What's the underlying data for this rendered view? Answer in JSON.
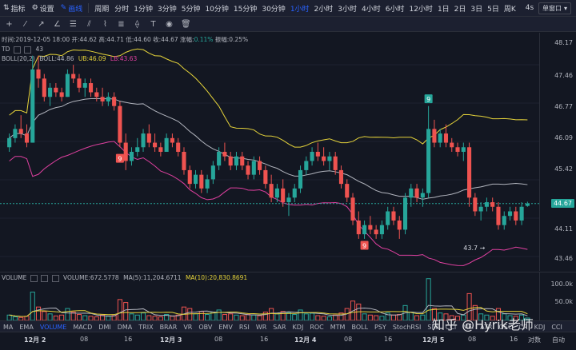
{
  "topbar": {
    "indicator_label": "指标",
    "settings_label": "设置",
    "draw_label": "画线",
    "period_label": "周期",
    "timeframes": [
      "分时",
      "1分钟",
      "3分钟",
      "5分钟",
      "10分钟",
      "15分钟",
      "30分钟",
      "1小时",
      "2小时",
      "3小时",
      "4小时",
      "6小时",
      "12小时",
      "1日",
      "2日",
      "3日",
      "5日",
      "周K"
    ],
    "active_timeframe": "1小时",
    "right_meta": "4s",
    "window_select": "单窗口"
  },
  "legend": {
    "ohlc": "时间:2019-12-05 18:00  开:44.62  高:44.71  低:44.60  收:44.67  涨幅:",
    "change_pct": "0.11%",
    "amplitude": "  振幅:0.25%",
    "td_label": "TD",
    "td_value": "43",
    "boll_label": "BOLL(20,2)",
    "boll_mid": "BOLL:44.86",
    "boll_ub": "UB:46.09",
    "boll_lb": "LB:43.63",
    "volume_label": "VOLUME",
    "volume_value": "VOLUME:672.5778",
    "ma_s": "MA(5):11,204.6711",
    "ma_10": "MA(10):20,830.8691"
  },
  "price_axis": {
    "ticks": [
      "48.17",
      "47.46",
      "46.77",
      "46.09",
      "45.42",
      "44.11",
      "43.46"
    ],
    "current": "44.67"
  },
  "volume_axis": {
    "ticks": [
      "100.0k",
      "50.0k"
    ]
  },
  "indicators": [
    "MA",
    "EMA",
    "VOLUME",
    "MACD",
    "DMI",
    "DMA",
    "TRIX",
    "BRAR",
    "VR",
    "OBV",
    "EMV",
    "RSI",
    "WR",
    "SAR",
    "KDJ",
    "ROC",
    "MTM",
    "BOLL",
    "PSY",
    "StochRSI",
    "SMI",
    "CCI",
    "MFI",
    "ATR",
    "OSC",
    "CR",
    "KDJ",
    "CCI"
  ],
  "active_indicator": "VOLUME",
  "xaxis": {
    "labels": [
      {
        "t": "12月 2",
        "b": true
      },
      {
        "t": "08",
        "b": false
      },
      {
        "t": "16",
        "b": false
      },
      {
        "t": "12月 3",
        "b": true
      },
      {
        "t": "08",
        "b": false
      },
      {
        "t": "16",
        "b": false
      },
      {
        "t": "12月 4",
        "b": true
      },
      {
        "t": "08",
        "b": false
      },
      {
        "t": "16",
        "b": false
      },
      {
        "t": "12月 5",
        "b": true
      },
      {
        "t": "08",
        "b": false
      },
      {
        "t": "16",
        "b": false
      }
    ],
    "log_label": "对数",
    "auto_label": "自动"
  },
  "annotations": {
    "td_top": "9",
    "td_bottom_1": "9",
    "td_bottom_2": "9",
    "low_note": "43.7 →"
  },
  "watermark": "知乎 @Hyrik老师",
  "colors": {
    "up": "#26a69a",
    "down": "#ef5350",
    "ub": "#e6d43a",
    "mid": "#b2b5be",
    "lb": "#e040a0",
    "accent": "#2962ff"
  },
  "chart_data": {
    "type": "candlestick",
    "ylim": [
      43.2,
      48.4
    ],
    "candles": [
      [
        45.9,
        46.2,
        45.8,
        46.1
      ],
      [
        46.1,
        46.4,
        46.0,
        46.3
      ],
      [
        46.3,
        46.6,
        46.1,
        46.2
      ],
      [
        46.2,
        46.4,
        45.9,
        46.0
      ],
      [
        46.0,
        47.9,
        46.0,
        47.6
      ],
      [
        47.6,
        47.9,
        47.2,
        47.4
      ],
      [
        47.4,
        47.5,
        46.9,
        47.0
      ],
      [
        47.0,
        47.3,
        46.8,
        47.2
      ],
      [
        47.2,
        47.3,
        47.0,
        47.1
      ],
      [
        47.1,
        47.2,
        46.9,
        47.0
      ],
      [
        47.0,
        47.6,
        47.0,
        47.5
      ],
      [
        47.5,
        47.7,
        47.3,
        47.4
      ],
      [
        47.4,
        47.5,
        47.1,
        47.2
      ],
      [
        47.2,
        47.4,
        47.0,
        47.3
      ],
      [
        47.3,
        47.4,
        47.0,
        47.1
      ],
      [
        47.1,
        47.2,
        46.9,
        47.0
      ],
      [
        47.0,
        47.2,
        46.8,
        46.9
      ],
      [
        46.9,
        47.1,
        46.8,
        47.0
      ],
      [
        47.0,
        47.1,
        46.7,
        46.8
      ],
      [
        46.8,
        46.9,
        45.9,
        46.0
      ],
      [
        46.0,
        46.2,
        45.4,
        45.6
      ],
      [
        45.6,
        45.9,
        45.5,
        45.8
      ],
      [
        45.8,
        46.1,
        45.7,
        45.9
      ],
      [
        45.9,
        46.3,
        45.8,
        46.2
      ],
      [
        46.2,
        46.4,
        45.9,
        46.0
      ],
      [
        46.0,
        46.2,
        45.8,
        45.9
      ],
      [
        45.9,
        46.0,
        45.7,
        45.8
      ],
      [
        45.8,
        46.2,
        45.8,
        46.1
      ],
      [
        46.1,
        46.2,
        45.9,
        46.0
      ],
      [
        46.0,
        46.1,
        45.7,
        45.8
      ],
      [
        45.8,
        45.9,
        45.3,
        45.4
      ],
      [
        45.4,
        45.5,
        45.0,
        45.1
      ],
      [
        45.1,
        45.4,
        45.0,
        45.3
      ],
      [
        45.3,
        45.4,
        44.9,
        45.0
      ],
      [
        45.0,
        45.3,
        44.9,
        45.2
      ],
      [
        45.2,
        45.6,
        45.1,
        45.5
      ],
      [
        45.5,
        45.9,
        45.4,
        45.8
      ],
      [
        45.8,
        46.0,
        45.6,
        45.7
      ],
      [
        45.7,
        45.8,
        45.4,
        45.5
      ],
      [
        45.5,
        45.8,
        45.4,
        45.7
      ],
      [
        45.7,
        45.8,
        45.4,
        45.5
      ],
      [
        45.5,
        45.6,
        45.2,
        45.3
      ],
      [
        45.3,
        45.7,
        45.2,
        45.6
      ],
      [
        45.6,
        45.7,
        45.3,
        45.4
      ],
      [
        45.4,
        45.5,
        45.0,
        45.1
      ],
      [
        45.1,
        45.3,
        44.7,
        44.8
      ],
      [
        44.8,
        45.1,
        44.7,
        45.0
      ],
      [
        45.0,
        45.2,
        44.6,
        44.7
      ],
      [
        44.7,
        44.9,
        44.4,
        44.8
      ],
      [
        44.8,
        45.1,
        44.7,
        45.0
      ],
      [
        45.0,
        45.5,
        44.9,
        45.4
      ],
      [
        45.4,
        45.7,
        45.3,
        45.6
      ],
      [
        45.6,
        45.9,
        45.5,
        45.8
      ],
      [
        45.8,
        46.0,
        45.6,
        45.7
      ],
      [
        45.7,
        45.9,
        45.5,
        45.6
      ],
      [
        45.6,
        45.8,
        45.4,
        45.7
      ],
      [
        45.7,
        45.8,
        45.3,
        45.4
      ],
      [
        45.4,
        45.5,
        45.0,
        45.1
      ],
      [
        45.1,
        45.2,
        44.7,
        44.8
      ],
      [
        44.8,
        44.9,
        44.2,
        44.3
      ],
      [
        44.3,
        44.5,
        43.9,
        44.0
      ],
      [
        44.0,
        44.3,
        43.9,
        44.2
      ],
      [
        44.2,
        44.4,
        44.0,
        44.1
      ],
      [
        44.1,
        44.2,
        43.9,
        44.0
      ],
      [
        44.0,
        44.3,
        43.9,
        44.2
      ],
      [
        44.2,
        44.6,
        44.1,
        44.5
      ],
      [
        44.5,
        44.6,
        44.2,
        44.3
      ],
      [
        44.3,
        44.4,
        43.9,
        44.1
      ],
      [
        44.1,
        44.9,
        44.0,
        44.8
      ],
      [
        44.8,
        45.1,
        44.6,
        45.0
      ],
      [
        45.0,
        45.1,
        44.7,
        44.8
      ],
      [
        44.8,
        45.0,
        44.6,
        44.9
      ],
      [
        44.9,
        46.8,
        44.8,
        46.3
      ],
      [
        46.3,
        46.5,
        45.9,
        46.0
      ],
      [
        46.0,
        46.3,
        45.9,
        46.2
      ],
      [
        46.2,
        46.4,
        45.9,
        46.0
      ],
      [
        46.0,
        46.1,
        45.8,
        45.9
      ],
      [
        45.9,
        46.0,
        45.7,
        45.8
      ],
      [
        45.8,
        46.0,
        45.6,
        45.9
      ],
      [
        45.9,
        46.0,
        44.6,
        44.8
      ],
      [
        44.8,
        44.9,
        44.4,
        44.5
      ],
      [
        44.5,
        44.7,
        44.3,
        44.6
      ],
      [
        44.6,
        44.8,
        44.5,
        44.7
      ],
      [
        44.7,
        44.8,
        44.5,
        44.6
      ],
      [
        44.6,
        44.7,
        44.1,
        44.2
      ],
      [
        44.2,
        44.5,
        44.1,
        44.4
      ],
      [
        44.4,
        44.6,
        44.3,
        44.5
      ],
      [
        44.5,
        44.6,
        44.2,
        44.3
      ],
      [
        44.3,
        44.7,
        44.2,
        44.6
      ],
      [
        44.62,
        44.71,
        44.6,
        44.67
      ]
    ],
    "volume": [
      18,
      12,
      10,
      14,
      95,
      45,
      30,
      22,
      15,
      18,
      40,
      28,
      20,
      16,
      14,
      12,
      18,
      14,
      16,
      70,
      60,
      22,
      18,
      25,
      16,
      14,
      12,
      20,
      14,
      18,
      45,
      40,
      22,
      30,
      20,
      28,
      35,
      20,
      22,
      18,
      16,
      20,
      18,
      16,
      28,
      40,
      22,
      30,
      26,
      20,
      35,
      22,
      24,
      16,
      14,
      12,
      18,
      25,
      40,
      65,
      55,
      22,
      18,
      16,
      14,
      25,
      18,
      20,
      50,
      28,
      16,
      18,
      140,
      40,
      25,
      22,
      16,
      14,
      18,
      90,
      50,
      22,
      18,
      14,
      40,
      22,
      16,
      14,
      18,
      8
    ],
    "vol_ylim": [
      0,
      150
    ]
  }
}
